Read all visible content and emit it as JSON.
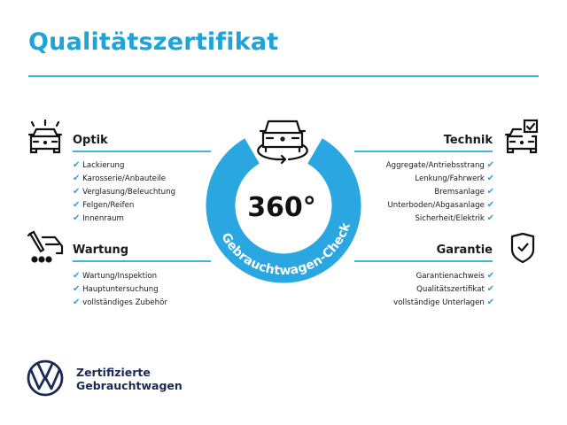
{
  "title": "Qualitätszertifikat",
  "colors": {
    "accent": "#1fa3d8",
    "ring": "#2aa6e0",
    "brand": "#1b2a55"
  },
  "center": {
    "value": "360°",
    "ring_text": "Gebrauchtwagen-Check",
    "icon": "car-rotate-icon"
  },
  "sections": {
    "optik": {
      "title": "Optik",
      "icon": "car-lights-icon",
      "items": [
        "Lackierung",
        "Karosserie/Anbauteile",
        "Verglasung/Beleuchtung",
        "Felgen/Reifen",
        "Innenraum"
      ]
    },
    "wartung": {
      "title": "Wartung",
      "icon": "service-tools-icon",
      "items": [
        "Wartung/Inspektion",
        "Hauptuntersuchung",
        "vollständiges Zubehör"
      ]
    },
    "technik": {
      "title": "Technik",
      "icon": "car-check-icon",
      "items": [
        "Aggregate/Antriebsstrang",
        "Lenkung/Fahrwerk",
        "Bremsanlage",
        "Unterboden/Abgasanlage",
        "Sicherheit/Elektrik"
      ]
    },
    "garantie": {
      "title": "Garantie",
      "icon": "shield-check-icon",
      "items": [
        "Garantienachweis",
        "Qualitätszertifikat",
        "vollständige Unterlagen"
      ]
    }
  },
  "check_glyph": "✔",
  "brand": {
    "line1": "Zertifizierte",
    "line2": "Gebrauchtwagen",
    "logo": "vw-logo"
  }
}
